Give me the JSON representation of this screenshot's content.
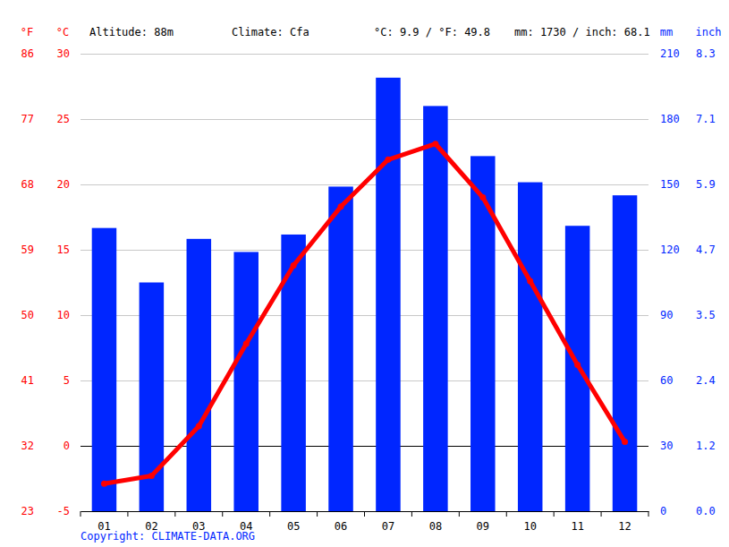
{
  "chart_data": {
    "type": "bar",
    "annotations": [
      "Altitude: 88m",
      "Climate: Cfa",
      "°C: 9.9 / °F: 49.8",
      "mm: 1730 / inch: 68.1"
    ],
    "source": "Copyright: CLIMATE-DATA.ORG",
    "y_label": "°C",
    "y_label_fahrenheit": "°F",
    "y2_label": "mm",
    "y2_label_inch": "inch",
    "categories": [
      "01",
      "02",
      "03",
      "04",
      "05",
      "06",
      "07",
      "08",
      "09",
      "10",
      "11",
      "12"
    ],
    "series": [
      {
        "type": "bar",
        "axis": "y2",
        "color": "#0026ff",
        "values": [
          130,
          105,
          125,
          119,
          127,
          149,
          199,
          186,
          163,
          151,
          131,
          145
        ]
      },
      {
        "type": "line",
        "color": "#ff0000",
        "marker": "circle",
        "values": [
          -2.9,
          -2.3,
          1.5,
          7.8,
          13.8,
          18.3,
          21.9,
          23.1,
          19.0,
          12.6,
          6.2,
          0.3
        ]
      }
    ],
    "ylim": [
      -5,
      30
    ],
    "yticks": [
      -5,
      0,
      5,
      10,
      15,
      20,
      25,
      30
    ],
    "yticks_fahrenheit": [
      {
        "value": -5,
        "label": "23"
      },
      {
        "value": 0,
        "label": "32"
      },
      {
        "value": 5,
        "label": "41"
      },
      {
        "value": 10,
        "label": "50"
      },
      {
        "value": 15,
        "label": "59"
      },
      {
        "value": 20,
        "label": "68"
      },
      {
        "value": 25,
        "label": "77"
      },
      {
        "value": 30,
        "label": "86"
      }
    ],
    "y2lim": [
      0,
      210
    ],
    "y2ticks": [
      0,
      30,
      60,
      90,
      120,
      150,
      180,
      210
    ],
    "y2ticks_inch": [
      {
        "value": 0,
        "label": "0.0"
      },
      {
        "value": 30,
        "label": "1.2"
      },
      {
        "value": 60,
        "label": "2.4"
      },
      {
        "value": 90,
        "label": "3.5"
      },
      {
        "value": 120,
        "label": "4.7"
      },
      {
        "value": 150,
        "label": "5.9"
      },
      {
        "value": 180,
        "label": "7.1"
      },
      {
        "value": 210,
        "label": "8.3"
      }
    ],
    "grid": true
  }
}
